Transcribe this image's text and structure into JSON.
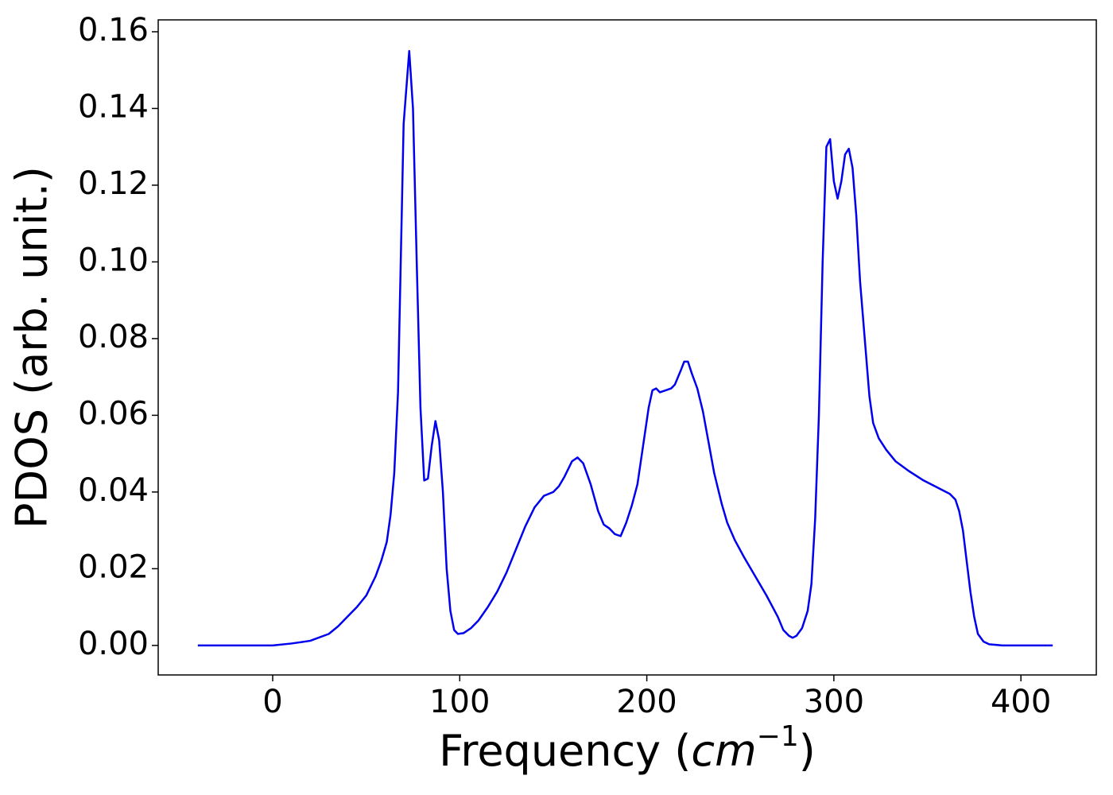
{
  "chart_data": {
    "type": "line",
    "xlabel": [
      "Frequency (",
      "cm",
      "−1",
      ")"
    ],
    "ylabel": "PDOS (arb. unit.)",
    "x": [
      -40,
      0,
      10,
      20,
      30,
      35,
      40,
      45,
      50,
      55,
      58,
      61,
      63,
      65,
      67,
      70,
      73,
      75,
      77,
      79,
      81,
      83,
      85,
      87,
      89,
      91,
      93,
      95,
      97,
      99,
      102,
      106,
      110,
      115,
      120,
      125,
      130,
      135,
      140,
      145,
      150,
      153,
      156,
      160,
      163,
      166,
      170,
      174,
      177,
      180,
      183,
      186,
      189,
      192,
      195,
      198,
      201,
      203,
      205,
      207,
      210,
      213,
      215,
      218,
      220,
      222,
      224,
      227,
      230,
      233,
      236,
      240,
      243,
      247,
      252,
      258,
      264,
      270,
      273,
      276,
      278,
      280,
      283,
      286,
      288,
      290,
      292,
      294,
      296,
      298,
      300,
      302,
      304,
      306,
      308,
      310,
      312,
      314,
      317,
      319,
      321,
      324,
      328,
      333,
      340,
      348,
      356,
      362,
      365,
      367,
      369,
      371,
      373,
      375,
      377,
      380,
      383,
      390,
      417
    ],
    "series": [
      {
        "name": "PDOS",
        "color": "#0000ee",
        "values": [
          0,
          0,
          0.0005,
          0.0012,
          0.003,
          0.005,
          0.0075,
          0.01,
          0.013,
          0.018,
          0.022,
          0.027,
          0.034,
          0.045,
          0.066,
          0.136,
          0.155,
          0.14,
          0.1,
          0.062,
          0.043,
          0.0435,
          0.052,
          0.0585,
          0.0535,
          0.04,
          0.02,
          0.009,
          0.004,
          0.003,
          0.0032,
          0.0045,
          0.0065,
          0.01,
          0.014,
          0.019,
          0.025,
          0.031,
          0.036,
          0.039,
          0.04,
          0.0415,
          0.044,
          0.048,
          0.049,
          0.0475,
          0.042,
          0.035,
          0.0315,
          0.0305,
          0.029,
          0.0285,
          0.032,
          0.0365,
          0.042,
          0.052,
          0.062,
          0.0665,
          0.067,
          0.066,
          0.0665,
          0.067,
          0.068,
          0.0715,
          0.074,
          0.074,
          0.071,
          0.067,
          0.061,
          0.053,
          0.045,
          0.037,
          0.032,
          0.0275,
          0.023,
          0.018,
          0.013,
          0.0075,
          0.004,
          0.0025,
          0.002,
          0.0025,
          0.0045,
          0.009,
          0.016,
          0.033,
          0.06,
          0.1,
          0.13,
          0.132,
          0.121,
          0.1165,
          0.121,
          0.128,
          0.1295,
          0.1245,
          0.112,
          0.095,
          0.077,
          0.065,
          0.058,
          0.054,
          0.051,
          0.048,
          0.0455,
          0.043,
          0.041,
          0.0395,
          0.038,
          0.035,
          0.03,
          0.022,
          0.014,
          0.0075,
          0.003,
          0.001,
          0.0003,
          0,
          0
        ]
      }
    ],
    "xlim": [
      -61.2,
      440.3
    ],
    "ylim": [
      -0.0077,
      0.1631
    ],
    "xticks": [
      0,
      100,
      200,
      300,
      400
    ],
    "yticks": [
      {
        "value": 0,
        "label": "0.00"
      },
      {
        "value": 0.02,
        "label": "0.02"
      },
      {
        "value": 0.04,
        "label": "0.04"
      },
      {
        "value": 0.06,
        "label": "0.06"
      },
      {
        "value": 0.08,
        "label": "0.08"
      },
      {
        "value": 0.1,
        "label": "0.10"
      },
      {
        "value": 0.12,
        "label": "0.12"
      },
      {
        "value": 0.14,
        "label": "0.14"
      },
      {
        "value": 0.16,
        "label": "0.16"
      }
    ],
    "grid": false
  }
}
